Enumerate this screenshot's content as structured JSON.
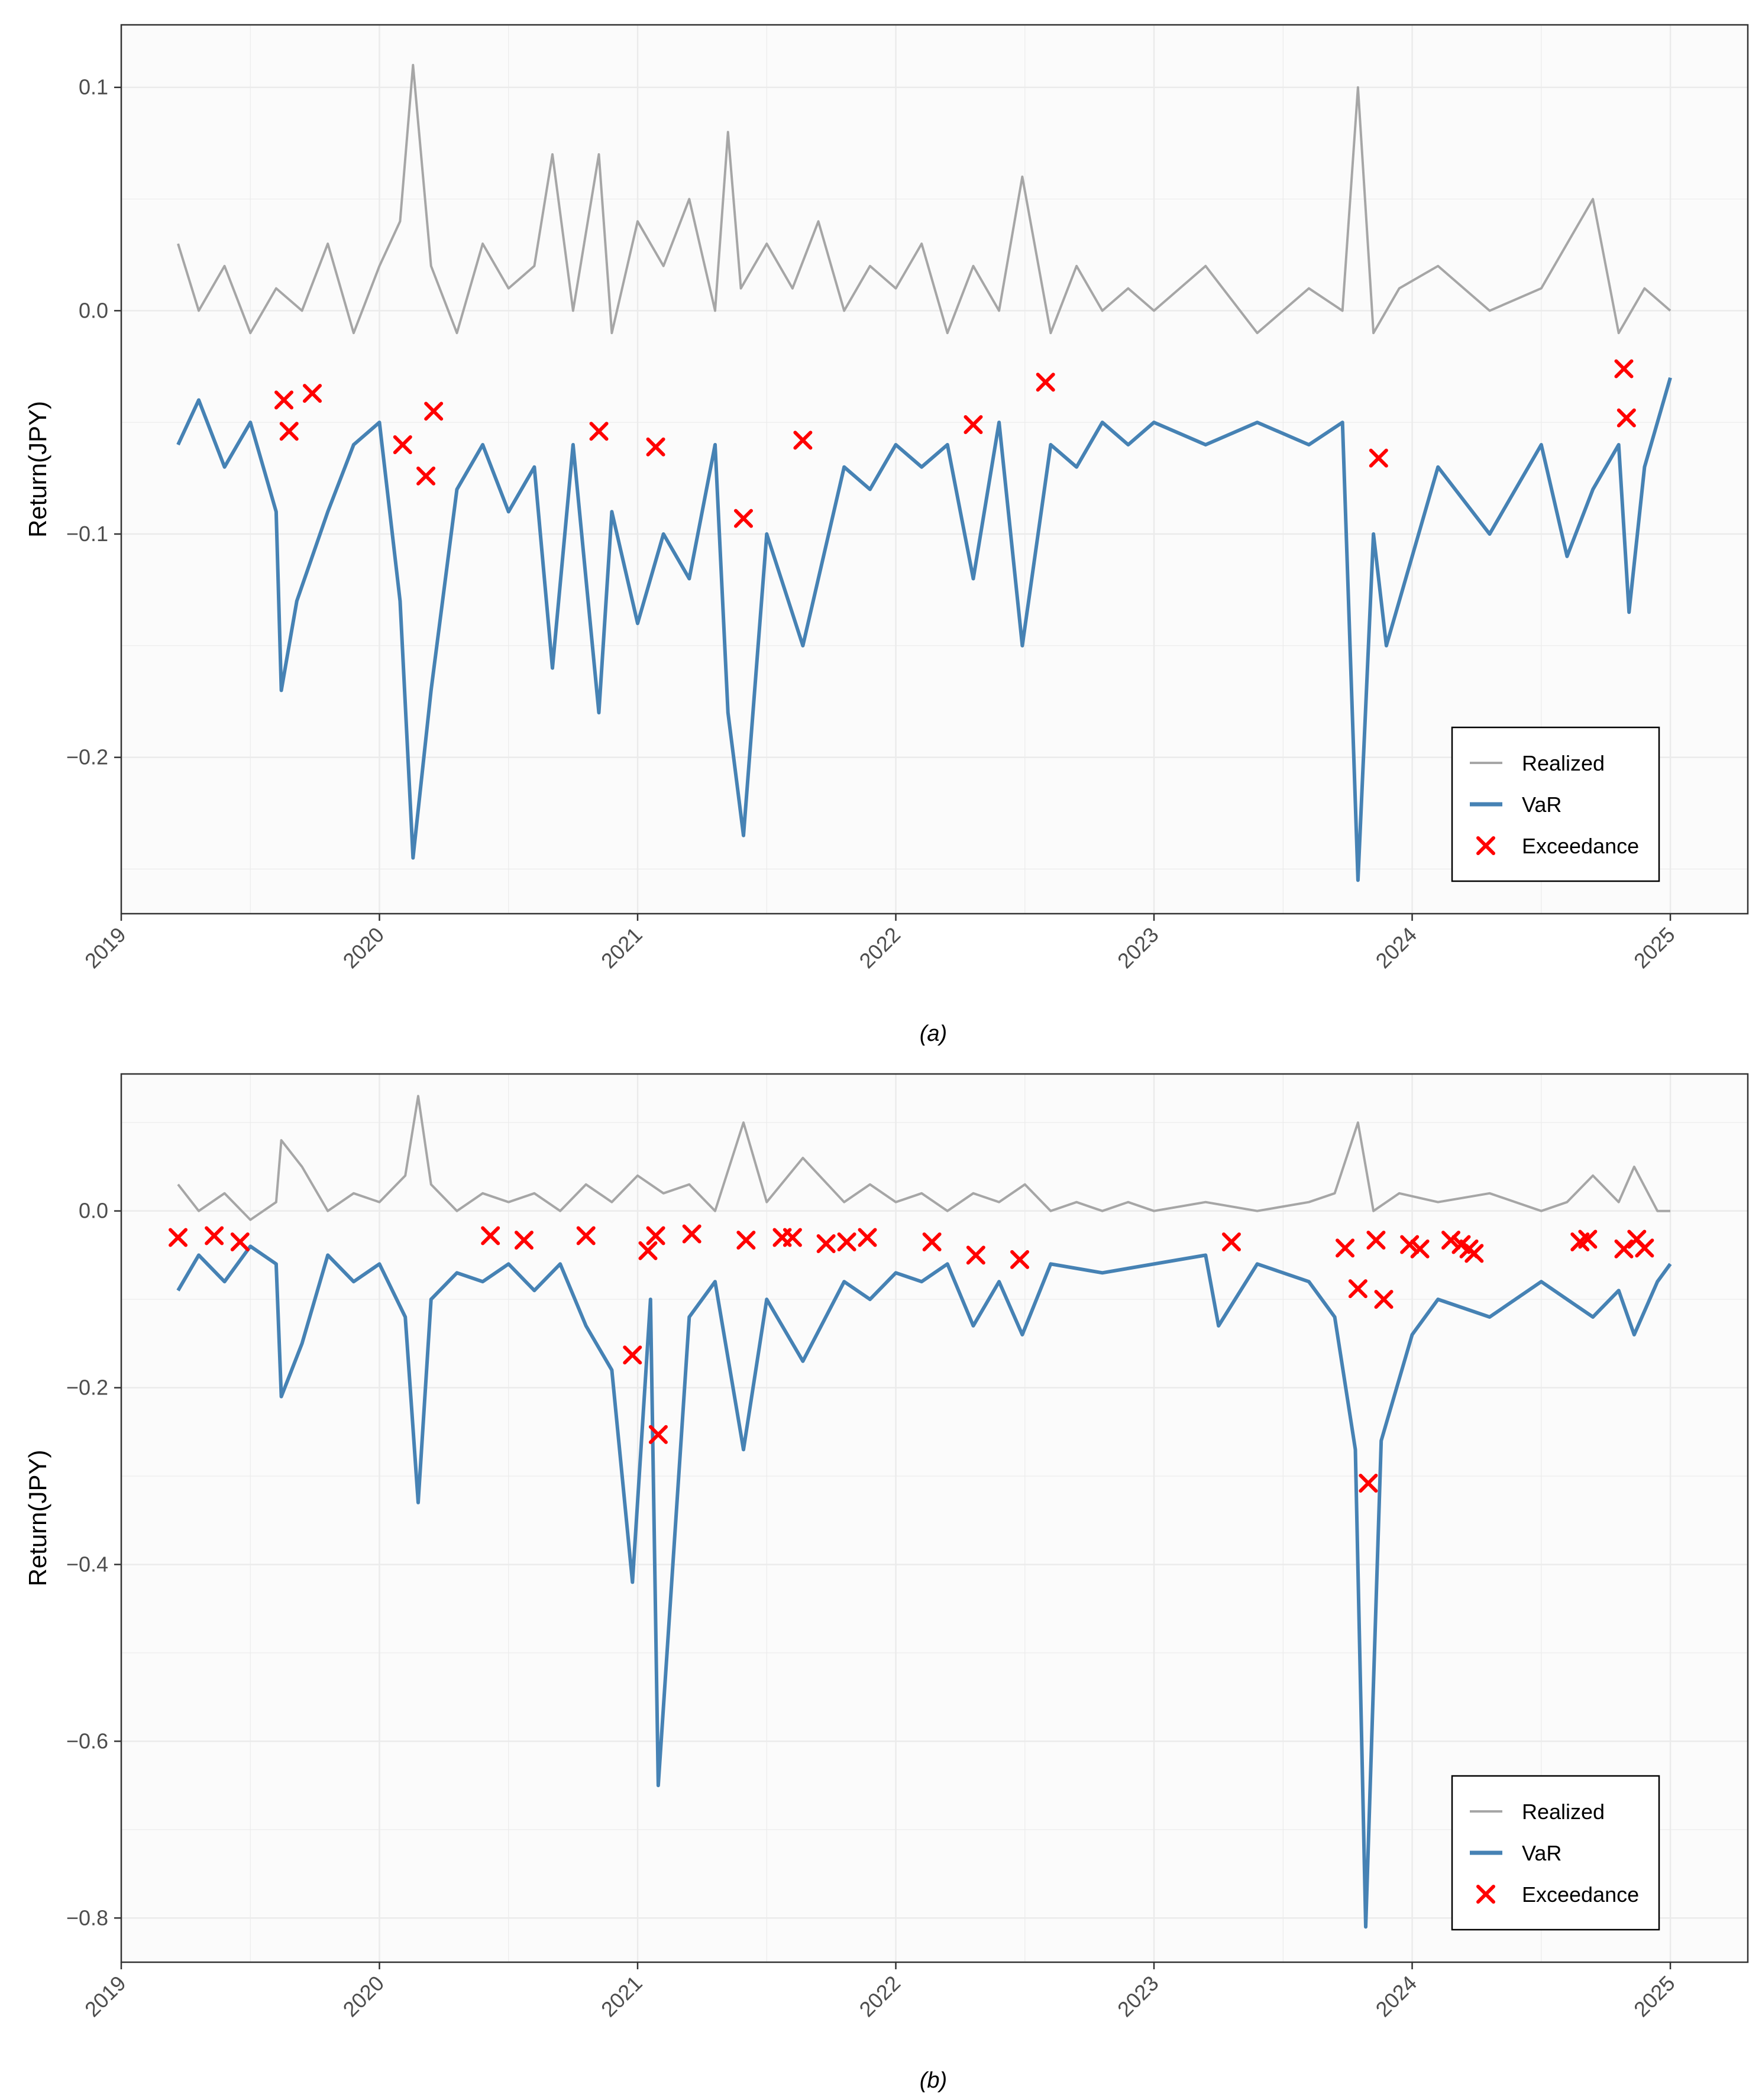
{
  "colors": {
    "realized": "#a6a6a6",
    "var": "#4682b4",
    "exceedance": "#ff0000",
    "panel_bg": "#fbfbfb",
    "grid": "#ebebeb"
  },
  "chart_data": [
    {
      "id": "a",
      "type": "line",
      "caption": "(a)",
      "ylabel": "Return(JPY)",
      "xlabel": "",
      "xlim": [
        2019.0,
        2025.3
      ],
      "ylim": [
        -0.27,
        0.128
      ],
      "xticks": [
        2019,
        2020,
        2021,
        2022,
        2023,
        2024,
        2025
      ],
      "xtick_labels": [
        "2019",
        "2020",
        "2021",
        "2022",
        "2023",
        "2024",
        "2025"
      ],
      "yticks": [
        -0.2,
        -0.1,
        0.0,
        0.1
      ],
      "ytick_labels": [
        "−0.2",
        "−0.1",
        "0.0",
        "0.1"
      ],
      "legend": {
        "position": "bottom-right",
        "entries": [
          "Realized",
          "VaR",
          "Exceedance"
        ]
      },
      "series": [
        {
          "name": "Realized",
          "x": [
            2019.22,
            2019.3,
            2019.4,
            2019.5,
            2019.6,
            2019.7,
            2019.8,
            2019.9,
            2020.0,
            2020.08,
            2020.13,
            2020.2,
            2020.3,
            2020.4,
            2020.5,
            2020.6,
            2020.67,
            2020.75,
            2020.85,
            2020.9,
            2021.0,
            2021.1,
            2021.2,
            2021.3,
            2021.35,
            2021.4,
            2021.5,
            2021.6,
            2021.7,
            2021.8,
            2021.9,
            2022.0,
            2022.1,
            2022.2,
            2022.3,
            2022.4,
            2022.49,
            2022.6,
            2022.7,
            2022.8,
            2022.9,
            2023.0,
            2023.2,
            2023.4,
            2023.6,
            2023.73,
            2023.79,
            2023.85,
            2023.95,
            2024.1,
            2024.3,
            2024.5,
            2024.6,
            2024.7,
            2024.8,
            2024.9,
            2025.0
          ],
          "values": [
            0.03,
            0.0,
            0.02,
            -0.01,
            0.01,
            0.0,
            0.03,
            -0.01,
            0.02,
            0.04,
            0.11,
            0.02,
            -0.01,
            0.03,
            0.01,
            0.02,
            0.07,
            0.0,
            0.07,
            -0.01,
            0.04,
            0.02,
            0.05,
            0.0,
            0.08,
            0.01,
            0.03,
            0.01,
            0.04,
            0.0,
            0.02,
            0.01,
            0.03,
            -0.01,
            0.02,
            0.0,
            0.06,
            -0.01,
            0.02,
            0.0,
            0.01,
            0.0,
            0.02,
            -0.01,
            0.01,
            0.0,
            0.1,
            -0.01,
            0.01,
            0.02,
            0.0,
            0.01,
            0.03,
            0.05,
            -0.01,
            0.01,
            0.0
          ]
        },
        {
          "name": "VaR",
          "x": [
            2019.22,
            2019.3,
            2019.4,
            2019.5,
            2019.6,
            2019.62,
            2019.68,
            2019.8,
            2019.9,
            2020.0,
            2020.08,
            2020.13,
            2020.2,
            2020.3,
            2020.4,
            2020.5,
            2020.6,
            2020.67,
            2020.75,
            2020.85,
            2020.9,
            2021.0,
            2021.1,
            2021.2,
            2021.3,
            2021.35,
            2021.41,
            2021.5,
            2021.64,
            2021.8,
            2021.9,
            2022.0,
            2022.1,
            2022.2,
            2022.3,
            2022.4,
            2022.49,
            2022.6,
            2022.7,
            2022.8,
            2022.9,
            2023.0,
            2023.2,
            2023.4,
            2023.6,
            2023.73,
            2023.79,
            2023.85,
            2023.9,
            2024.1,
            2024.3,
            2024.5,
            2024.6,
            2024.7,
            2024.8,
            2024.84,
            2024.9,
            2025.0
          ],
          "values": [
            -0.06,
            -0.04,
            -0.07,
            -0.05,
            -0.09,
            -0.17,
            -0.13,
            -0.09,
            -0.06,
            -0.05,
            -0.13,
            -0.245,
            -0.17,
            -0.08,
            -0.06,
            -0.09,
            -0.07,
            -0.16,
            -0.06,
            -0.18,
            -0.09,
            -0.14,
            -0.1,
            -0.12,
            -0.06,
            -0.18,
            -0.235,
            -0.1,
            -0.15,
            -0.07,
            -0.08,
            -0.06,
            -0.07,
            -0.06,
            -0.12,
            -0.05,
            -0.15,
            -0.06,
            -0.07,
            -0.05,
            -0.06,
            -0.05,
            -0.06,
            -0.05,
            -0.06,
            -0.05,
            -0.255,
            -0.1,
            -0.15,
            -0.07,
            -0.1,
            -0.06,
            -0.11,
            -0.08,
            -0.06,
            -0.135,
            -0.07,
            -0.03
          ]
        }
      ],
      "exceedances": {
        "x": [
          2019.63,
          2019.65,
          2019.74,
          2020.09,
          2020.18,
          2020.21,
          2020.85,
          2021.07,
          2021.41,
          2021.64,
          2022.3,
          2022.58,
          2023.87,
          2024.82,
          2024.83
        ],
        "y": [
          -0.04,
          -0.054,
          -0.037,
          -0.06,
          -0.074,
          -0.045,
          -0.054,
          -0.061,
          -0.093,
          -0.058,
          -0.051,
          -0.032,
          -0.066,
          -0.026,
          -0.048
        ]
      }
    },
    {
      "id": "b",
      "type": "line",
      "caption": "(b)",
      "ylabel": "Return(JPY)",
      "xlabel": "",
      "xlim": [
        2019.0,
        2025.3
      ],
      "ylim": [
        -0.85,
        0.155
      ],
      "xticks": [
        2019,
        2020,
        2021,
        2022,
        2023,
        2024,
        2025
      ],
      "xtick_labels": [
        "2019",
        "2020",
        "2021",
        "2022",
        "2023",
        "2024",
        "2025"
      ],
      "yticks": [
        -0.8,
        -0.6,
        -0.4,
        -0.2,
        0.0
      ],
      "ytick_labels": [
        "−0.8",
        "−0.6",
        "−0.4",
        "−0.2",
        "0.0"
      ],
      "legend": {
        "position": "bottom-right",
        "entries": [
          "Realized",
          "VaR",
          "Exceedance"
        ]
      },
      "series": [
        {
          "name": "Realized",
          "x": [
            2019.22,
            2019.3,
            2019.4,
            2019.5,
            2019.6,
            2019.62,
            2019.7,
            2019.8,
            2019.9,
            2020.0,
            2020.1,
            2020.15,
            2020.2,
            2020.3,
            2020.4,
            2020.5,
            2020.6,
            2020.7,
            2020.8,
            2020.9,
            2021.0,
            2021.1,
            2021.2,
            2021.3,
            2021.41,
            2021.5,
            2021.64,
            2021.8,
            2021.9,
            2022.0,
            2022.1,
            2022.2,
            2022.3,
            2022.4,
            2022.5,
            2022.6,
            2022.7,
            2022.8,
            2022.9,
            2023.0,
            2023.2,
            2023.4,
            2023.6,
            2023.7,
            2023.79,
            2023.85,
            2023.95,
            2024.1,
            2024.3,
            2024.5,
            2024.6,
            2024.7,
            2024.8,
            2024.86,
            2024.95,
            2025.0
          ],
          "values": [
            0.03,
            0.0,
            0.02,
            -0.01,
            0.01,
            0.08,
            0.05,
            0.0,
            0.02,
            0.01,
            0.04,
            0.13,
            0.03,
            0.0,
            0.02,
            0.01,
            0.02,
            0.0,
            0.03,
            0.01,
            0.04,
            0.02,
            0.03,
            0.0,
            0.1,
            0.01,
            0.06,
            0.01,
            0.03,
            0.01,
            0.02,
            0.0,
            0.02,
            0.01,
            0.03,
            0.0,
            0.01,
            0.0,
            0.01,
            0.0,
            0.01,
            0.0,
            0.01,
            0.02,
            0.1,
            0.0,
            0.02,
            0.01,
            0.02,
            0.0,
            0.01,
            0.04,
            0.01,
            0.05,
            0.0,
            0.0
          ]
        },
        {
          "name": "VaR",
          "x": [
            2019.22,
            2019.3,
            2019.4,
            2019.5,
            2019.6,
            2019.62,
            2019.7,
            2019.8,
            2019.9,
            2020.0,
            2020.1,
            2020.15,
            2020.2,
            2020.3,
            2020.4,
            2020.5,
            2020.6,
            2020.7,
            2020.8,
            2020.9,
            2020.98,
            2021.05,
            2021.08,
            2021.2,
            2021.3,
            2021.41,
            2021.5,
            2021.64,
            2021.8,
            2021.9,
            2022.0,
            2022.1,
            2022.2,
            2022.3,
            2022.4,
            2022.49,
            2022.6,
            2022.8,
            2023.0,
            2023.2,
            2023.25,
            2023.4,
            2023.6,
            2023.7,
            2023.78,
            2023.82,
            2023.88,
            2024.0,
            2024.1,
            2024.3,
            2024.5,
            2024.6,
            2024.7,
            2024.8,
            2024.86,
            2024.95,
            2025.0
          ],
          "values": [
            -0.09,
            -0.05,
            -0.08,
            -0.04,
            -0.06,
            -0.21,
            -0.15,
            -0.05,
            -0.08,
            -0.06,
            -0.12,
            -0.33,
            -0.1,
            -0.07,
            -0.08,
            -0.06,
            -0.09,
            -0.06,
            -0.13,
            -0.18,
            -0.42,
            -0.1,
            -0.65,
            -0.12,
            -0.08,
            -0.27,
            -0.1,
            -0.17,
            -0.08,
            -0.1,
            -0.07,
            -0.08,
            -0.06,
            -0.13,
            -0.08,
            -0.14,
            -0.06,
            -0.07,
            -0.06,
            -0.05,
            -0.13,
            -0.06,
            -0.08,
            -0.12,
            -0.27,
            -0.81,
            -0.26,
            -0.14,
            -0.1,
            -0.12,
            -0.08,
            -0.1,
            -0.12,
            -0.09,
            -0.14,
            -0.08,
            -0.06
          ]
        }
      ],
      "exceedances": {
        "x": [
          2019.22,
          2019.36,
          2019.46,
          2020.43,
          2020.56,
          2020.8,
          2020.98,
          2021.04,
          2021.07,
          2021.08,
          2021.21,
          2021.42,
          2021.56,
          2021.6,
          2021.73,
          2021.81,
          2021.89,
          2022.14,
          2022.31,
          2022.48,
          2023.3,
          2023.74,
          2023.79,
          2023.83,
          2023.86,
          2023.89,
          2023.99,
          2024.03,
          2024.15,
          2024.19,
          2024.22,
          2024.24,
          2024.65,
          2024.68,
          2024.82,
          2024.87,
          2024.9
        ],
        "y": [
          -0.03,
          -0.028,
          -0.035,
          -0.028,
          -0.033,
          -0.028,
          -0.163,
          -0.045,
          -0.028,
          -0.253,
          -0.026,
          -0.033,
          -0.03,
          -0.03,
          -0.037,
          -0.035,
          -0.03,
          -0.035,
          -0.05,
          -0.055,
          -0.035,
          -0.042,
          -0.088,
          -0.308,
          -0.033,
          -0.1,
          -0.038,
          -0.043,
          -0.033,
          -0.038,
          -0.043,
          -0.048,
          -0.035,
          -0.032,
          -0.043,
          -0.032,
          -0.042
        ]
      }
    }
  ]
}
